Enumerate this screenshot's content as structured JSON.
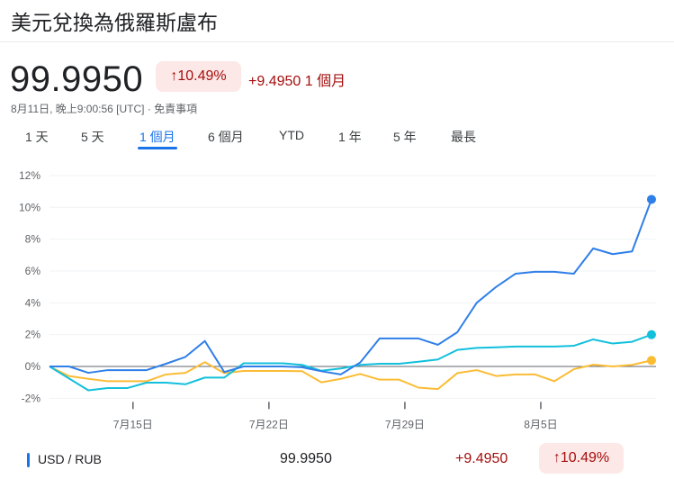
{
  "header": {
    "title": "美元兌換為俄羅斯盧布",
    "price": "99.9950",
    "change_pct": "10.49%",
    "change_icon": "arrow-up-icon",
    "change_abs": "+9.4950 1 個月",
    "timestamp": "8月11日, 晚上9:00:56 [UTC] · 免責事項"
  },
  "tabs": [
    {
      "label": "1 天"
    },
    {
      "label": "5 天"
    },
    {
      "label": "1 個月",
      "active": true
    },
    {
      "label": "6 個月"
    },
    {
      "label": "YTD"
    },
    {
      "label": "1 年"
    },
    {
      "label": "5 年"
    },
    {
      "label": "最長"
    }
  ],
  "chart_data": {
    "type": "line",
    "x": [
      "7/11",
      "7/12",
      "7/13",
      "7/14",
      "7/15",
      "7/16",
      "7/17",
      "7/18",
      "7/19",
      "7/20",
      "7/21",
      "7/22",
      "7/23",
      "7/24",
      "7/25",
      "7/26",
      "7/27",
      "7/28",
      "7/29",
      "7/30",
      "7/31",
      "8/1",
      "8/2",
      "8/3",
      "8/4",
      "8/5",
      "8/6",
      "8/7",
      "8/8",
      "8/9",
      "8/10",
      "8/11"
    ],
    "x_ticks": [
      {
        "label": "7月15日",
        "index": 4
      },
      {
        "label": "7月22日",
        "index": 11
      },
      {
        "label": "7月29日",
        "index": 18
      },
      {
        "label": "8月5日",
        "index": 25
      }
    ],
    "y_ticks": [
      "12%",
      "10%",
      "8%",
      "6%",
      "4%",
      "2%",
      "0%",
      "-2%"
    ],
    "ylim": [
      -2,
      12
    ],
    "grid": true,
    "series": [
      {
        "name": "USD / RUB",
        "color": "#2f7fe8",
        "values": [
          0,
          0,
          -0.4,
          -0.23,
          -0.23,
          -0.23,
          0.17,
          0.6,
          1.6,
          -0.35,
          0,
          0,
          0,
          -0.05,
          -0.3,
          -0.5,
          0.25,
          1.76,
          1.76,
          1.76,
          1.36,
          2.15,
          4.0,
          5.0,
          5.83,
          5.95,
          5.95,
          5.83,
          7.42,
          7.06,
          7.23,
          10.5
        ]
      },
      {
        "color": "#12c0dc",
        "values": [
          0,
          -0.75,
          -1.5,
          -1.36,
          -1.36,
          -1.02,
          -1.02,
          -1.12,
          -0.7,
          -0.7,
          0.2,
          0.2,
          0.2,
          0.1,
          -0.27,
          -0.13,
          0.1,
          0.17,
          0.17,
          0.3,
          0.44,
          1.04,
          1.17,
          1.2,
          1.25,
          1.25,
          1.25,
          1.3,
          1.7,
          1.44,
          1.55,
          2.0
        ]
      },
      {
        "color": "#fbbc35",
        "values": [
          0,
          -0.6,
          -0.78,
          -0.93,
          -0.93,
          -0.93,
          -0.5,
          -0.4,
          0.27,
          -0.42,
          -0.28,
          -0.28,
          -0.28,
          -0.3,
          -1.0,
          -0.78,
          -0.47,
          -0.83,
          -0.83,
          -1.33,
          -1.42,
          -0.42,
          -0.23,
          -0.6,
          -0.5,
          -0.5,
          -0.93,
          -0.17,
          0.11,
          0,
          0.1,
          0.38
        ]
      }
    ]
  },
  "legend_row": {
    "symbol": "USD / RUB",
    "price": "99.9950",
    "change": "+9.4950",
    "change_pct": "10.49%",
    "color": "#1a73e8"
  }
}
